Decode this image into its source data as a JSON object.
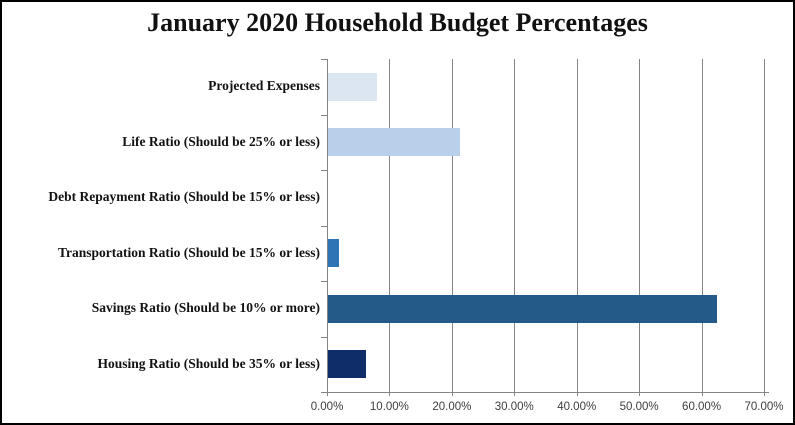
{
  "frame": {
    "background": "#ffffff",
    "border_color": "#000000"
  },
  "chart_data": {
    "type": "bar",
    "orientation": "horizontal",
    "title": "January 2020 Household Budget Percentages",
    "categories": [
      "Projected Expenses",
      "Life Ratio (Should be 25% or less)",
      "Debt Repayment Ratio (Should be 15% or less)",
      "Transportation Ratio (Should be 15% or less)",
      "Savings Ratio (Should be 10% or more)",
      "Housing Ratio (Should be 35% or less)"
    ],
    "values": [
      8.0,
      21.3,
      0.0,
      1.9,
      62.5,
      6.3
    ],
    "unit": "percent",
    "bar_colors": [
      "#dce6f2",
      "#b8d0ea",
      null,
      "#2e75b6",
      "#235a88",
      "#0f2d69"
    ],
    "xlabel": "",
    "ylabel": "",
    "xlim": [
      0,
      70
    ],
    "x_tick_values": [
      0,
      10,
      20,
      30,
      40,
      50,
      60,
      70
    ],
    "x_tick_labels": [
      "0.00%",
      "10.00%",
      "20.00%",
      "30.00%",
      "40.00%",
      "50.00%",
      "60.00%",
      "70.00%"
    ],
    "grid": "vertical-only",
    "legend": "none",
    "axis_color": "#858585",
    "tick_label_color": "#3d3d3d",
    "title_color": "#111111",
    "category_label_color": "#121212"
  }
}
